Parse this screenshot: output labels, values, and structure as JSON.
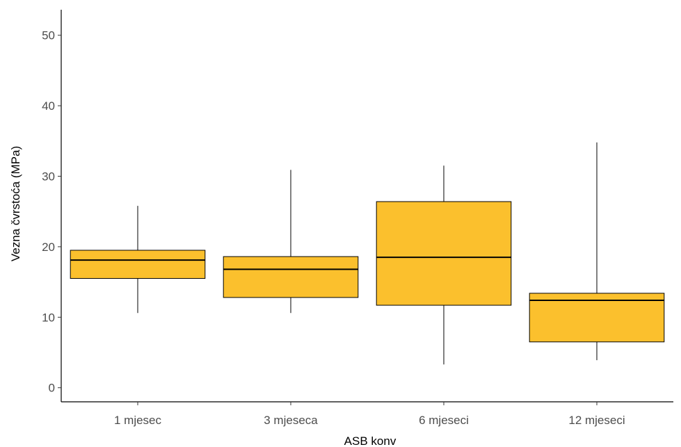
{
  "chart_data": {
    "type": "boxplot",
    "xlabel": "ASB konv",
    "ylabel": "Vezna čvrstoća (MPa)",
    "ylim": [
      -2,
      55
    ],
    "yticks": [
      0,
      10,
      20,
      30,
      40,
      50
    ],
    "categories": [
      "1 mjesec",
      "3 mjeseca",
      "6 mjeseci",
      "12 mjeseci"
    ],
    "boxes": [
      {
        "min": 10.6,
        "q1": 15.5,
        "median": 18.1,
        "q3": 19.5,
        "max": 25.8
      },
      {
        "min": 10.6,
        "q1": 12.8,
        "median": 16.8,
        "q3": 18.6,
        "max": 30.9
      },
      {
        "min": 3.3,
        "q1": 11.7,
        "median": 18.5,
        "q3": 26.4,
        "max": 31.5
      },
      {
        "min": 3.9,
        "q1": 6.5,
        "median": 12.4,
        "q3": 13.4,
        "max": 34.8
      }
    ],
    "box_color": "#FBC02D",
    "grid": false
  }
}
